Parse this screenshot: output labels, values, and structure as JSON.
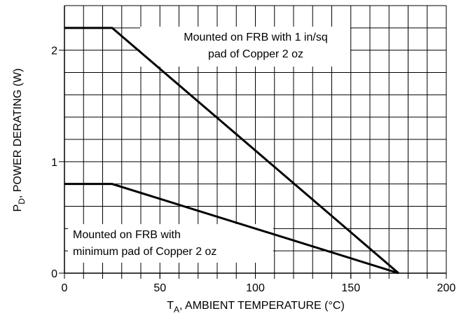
{
  "chart_data": {
    "type": "line",
    "x_label": {
      "main": "T",
      "sub": "A",
      "rest": ", AMBIENT TEMPERATURE (°C)"
    },
    "y_label": {
      "main": "P",
      "sub": "D",
      "rest": ", POWER DERATING (W)"
    },
    "series": [
      {
        "color": "#000000",
        "x": [
          0,
          25,
          175
        ],
        "values": [
          2.2,
          2.2,
          0
        ]
      },
      {
        "color": "#000000",
        "x": [
          0,
          25,
          175
        ],
        "values": [
          0.8,
          0.8,
          0
        ]
      }
    ],
    "annotations": [
      {
        "lines": [
          "Mounted on FRB with 1 in/sq",
          "pad of Copper 2 oz"
        ]
      },
      {
        "lines": [
          "Mounted on FRB with",
          "minimum pad of Copper 2 oz"
        ]
      }
    ],
    "xlim": [
      0,
      200
    ],
    "ylim": [
      0,
      2.4
    ],
    "xticks": [
      0,
      50,
      100,
      150,
      200
    ],
    "yticks": [
      0,
      1,
      2
    ],
    "grid": true,
    "x_grid_step": 10,
    "y_grid_step": 0.2
  }
}
